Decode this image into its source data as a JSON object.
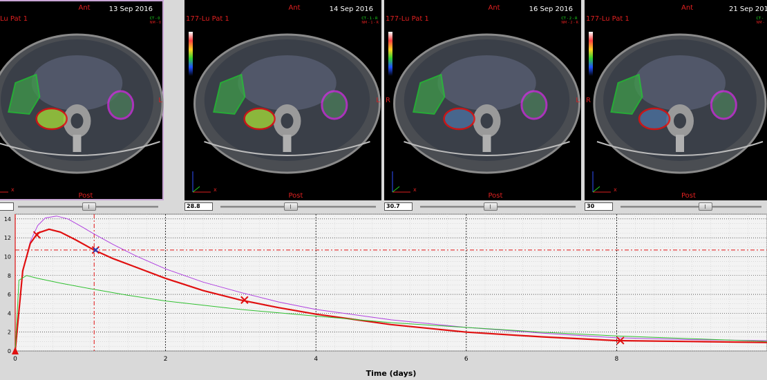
{
  "panels": [
    {
      "date": "13 Sep 2016",
      "ant": "Ant",
      "post": "Post",
      "patient": "Lu Pat 1",
      "ct1": "CT - 0",
      "ct2": "NM - 0",
      "side_r": "",
      "side_l": "L",
      "x": "x",
      "selected": true
    },
    {
      "date": "14 Sep 2016",
      "ant": "Ant",
      "post": "Post",
      "patient": "177-Lu Pat 1",
      "ct1": "CT - 1 - R",
      "ct2": "NM - 1 - R",
      "side_r": "",
      "side_l": "L",
      "x": "x",
      "selected": false
    },
    {
      "date": "16 Sep 2016",
      "ant": "Ant",
      "post": "Post",
      "patient": "177-Lu Pat 1",
      "ct1": "CT - 2 - R",
      "ct2": "NM - 2 - R",
      "side_r": "R",
      "side_l": "L",
      "x": "x",
      "selected": false
    },
    {
      "date": "21 Sep 201",
      "ant": "Ant",
      "post": "Post",
      "patient": "177-Lu Pat 1",
      "ct1": "CT -",
      "ct2": "NM -",
      "side_r": "R",
      "side_l": "",
      "x": "x",
      "selected": false
    }
  ],
  "controls": [
    {
      "value": "",
      "slider": 0.5
    },
    {
      "value": "28.8",
      "slider": 0.45
    },
    {
      "value": "30.7",
      "slider": 0.45
    },
    {
      "value": "30",
      "slider": 0.6
    }
  ],
  "colors": {
    "liver": "#20d030",
    "kidney_r": "#e01010",
    "kidney_l": "#d030e0",
    "total": "#e01010",
    "bg": "#f3f3f3"
  },
  "chart_data": {
    "type": "line",
    "xlabel": "Time (days)",
    "xlim": [
      0,
      10
    ],
    "ylim": [
      0,
      14.5
    ],
    "x_ticks": [
      0,
      2,
      4,
      6,
      8
    ],
    "y_tick_labels": [
      "0",
      "2",
      "4",
      "6",
      "8",
      "10",
      "12",
      "14"
    ],
    "y_ticks": [
      0,
      2,
      4,
      6,
      8,
      10,
      12,
      14
    ],
    "grid": true,
    "reference_lines": {
      "x": 1.05,
      "y": 10.7
    },
    "series": [
      {
        "color": "#b040e0",
        "width": 1,
        "x": [
          0,
          0.1,
          0.2,
          0.3,
          0.4,
          0.55,
          0.7,
          0.9,
          1.05,
          1.3,
          1.6,
          2,
          2.5,
          3,
          3.5,
          4,
          5,
          6,
          7,
          8,
          9,
          10
        ],
        "y": [
          0,
          8.5,
          11.6,
          13.3,
          14.1,
          14.3,
          14.0,
          13.1,
          12.4,
          11.3,
          10.1,
          8.7,
          7.3,
          6.2,
          5.2,
          4.4,
          3.3,
          2.5,
          1.9,
          1.4,
          1.2,
          1.1
        ]
      },
      {
        "color": "#e01010",
        "width": 2.2,
        "x": [
          0,
          0.1,
          0.2,
          0.3,
          0.45,
          0.6,
          0.8,
          1.05,
          1.3,
          1.6,
          2,
          2.5,
          3,
          3.5,
          4,
          5,
          6,
          7,
          8,
          9,
          10
        ],
        "y": [
          0,
          8.5,
          11.4,
          12.5,
          12.9,
          12.6,
          11.8,
          10.7,
          9.8,
          8.9,
          7.7,
          6.4,
          5.4,
          4.6,
          3.9,
          2.8,
          2.0,
          1.5,
          1.1,
          1.0,
          0.9
        ]
      },
      {
        "color": "#30c030",
        "width": 1,
        "x": [
          0,
          0.05,
          0.15,
          0.3,
          0.6,
          1,
          1.5,
          2,
          3,
          4,
          5,
          6,
          7,
          8,
          9,
          10
        ],
        "y": [
          0,
          7.5,
          8.0,
          7.7,
          7.2,
          6.6,
          5.9,
          5.3,
          4.4,
          3.7,
          3.0,
          2.5,
          2.0,
          1.6,
          1.3,
          1.0
        ]
      }
    ],
    "markers": [
      {
        "x": 0.29,
        "y": 12.3,
        "kind": "x",
        "color": "#e01010"
      },
      {
        "x": 1.07,
        "y": 10.7,
        "kind": "x",
        "color": "#e01010"
      },
      {
        "x": 1.07,
        "y": 10.7,
        "kind": "x",
        "color": "#2040c0"
      },
      {
        "x": 3.05,
        "y": 5.4,
        "kind": "x",
        "color": "#e01010"
      },
      {
        "x": 8.05,
        "y": 1.1,
        "kind": "x",
        "color": "#e01010"
      },
      {
        "x": 0.0,
        "y": 0.0,
        "kind": "triangle",
        "color": "#e01010"
      }
    ]
  }
}
